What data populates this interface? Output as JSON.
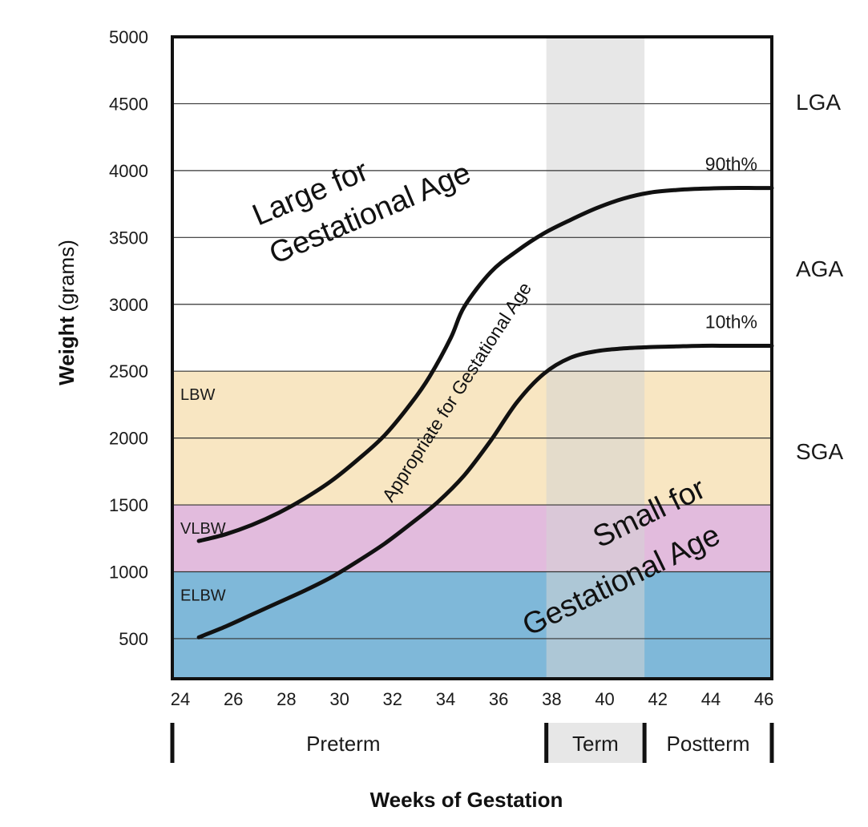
{
  "chart_data": {
    "type": "line",
    "xlabel": "Weeks of Gestation",
    "ylabel_bold": "Weight",
    "ylabel_unit": "(grams)",
    "xlim": [
      24,
      46.6
    ],
    "ylim": [
      200,
      5000
    ],
    "x_ticks": [
      24,
      26,
      28,
      30,
      32,
      34,
      36,
      38,
      40,
      42,
      44,
      46
    ],
    "y_ticks": [
      500,
      1000,
      1500,
      2000,
      2500,
      3000,
      3500,
      4000,
      4500,
      5000
    ],
    "grid": true,
    "term_shading": {
      "from": 38.1,
      "to": 41.8,
      "color": "#d4d4d4"
    },
    "bands": [
      {
        "label": "ELBW",
        "from": 200,
        "to": 1000,
        "color": "#7fb8d9"
      },
      {
        "label": "VLBW",
        "from": 1000,
        "to": 1500,
        "color": "#e2bbdd"
      },
      {
        "label": "LBW",
        "from": 1500,
        "to": 2500,
        "color": "#f8e6c2"
      }
    ],
    "series": [
      {
        "name": "90th%",
        "x": [
          25,
          26,
          27,
          28,
          29,
          30,
          31,
          32,
          33,
          33.7,
          34.5,
          35,
          36,
          37,
          38,
          39,
          40,
          41,
          42,
          43,
          44,
          45,
          46,
          46.6
        ],
        "values": [
          1230,
          1280,
          1350,
          1440,
          1550,
          1680,
          1840,
          2020,
          2260,
          2460,
          2750,
          2980,
          3240,
          3400,
          3530,
          3630,
          3720,
          3790,
          3835,
          3855,
          3865,
          3870,
          3870,
          3870
        ]
      },
      {
        "name": "10th%",
        "x": [
          25,
          26,
          27,
          28,
          29,
          30,
          31,
          32,
          33,
          34,
          35,
          36,
          37,
          38,
          39,
          40,
          41,
          42,
          43,
          44,
          45,
          46,
          46.6
        ],
        "values": [
          510,
          590,
          680,
          770,
          860,
          960,
          1080,
          1210,
          1360,
          1520,
          1720,
          1980,
          2270,
          2480,
          2600,
          2650,
          2670,
          2680,
          2685,
          2690,
          2690,
          2690,
          2690
        ]
      }
    ],
    "right_labels": [
      "LGA",
      "AGA",
      "SGA"
    ],
    "annotations": {
      "lga_line1": "Large for",
      "lga_line2": "Gestational Age",
      "sga_line1": "Small for",
      "sga_line2": "Gestational Age",
      "aga": "Appropriate for Gestational Age"
    },
    "periods": [
      "Preterm",
      "Term",
      "Postterm"
    ]
  }
}
